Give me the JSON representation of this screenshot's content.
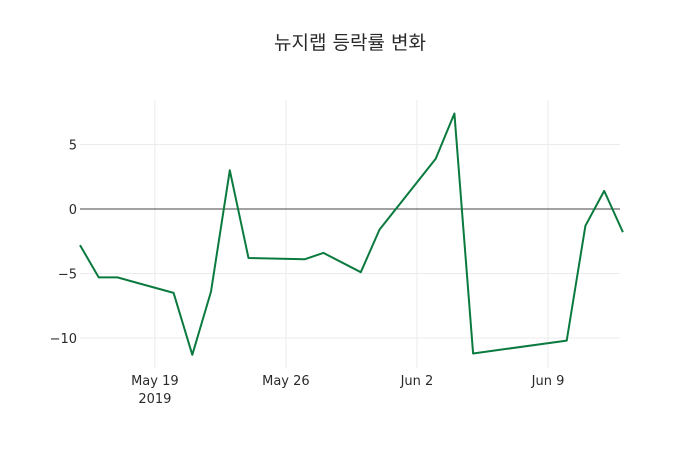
{
  "chart_data": {
    "type": "line",
    "title": "뉴지랩 등락률 변화",
    "xlabel": "",
    "ylabel": "",
    "line_color": "#0b7a3e",
    "grid": true,
    "legend": null,
    "ylim": [
      -12,
      8.5
    ],
    "yticks": [
      5,
      0,
      -5,
      -10
    ],
    "ytick_labels": [
      "5",
      "0",
      "−5",
      "−10"
    ],
    "xticks": [
      "May 19",
      "May 26",
      "Jun 2",
      "Jun 9"
    ],
    "xtick_sublabel": "2019",
    "x": [
      "2019-05-15",
      "2019-05-16",
      "2019-05-17",
      "2019-05-20",
      "2019-05-21",
      "2019-05-22",
      "2019-05-23",
      "2019-05-24",
      "2019-05-27",
      "2019-05-28",
      "2019-05-30",
      "2019-05-31",
      "2019-06-03",
      "2019-06-04",
      "2019-06-05",
      "2019-06-10",
      "2019-06-11",
      "2019-06-12",
      "2019-06-13"
    ],
    "series": [
      {
        "name": "등락률",
        "values": [
          -2.8,
          -5.3,
          -5.3,
          -6.5,
          -11.3,
          -6.4,
          3.0,
          -3.8,
          -3.9,
          -3.4,
          -4.9,
          -1.6,
          3.9,
          7.4,
          -11.2,
          -10.2,
          -1.3,
          1.4,
          -1.8
        ]
      }
    ]
  }
}
